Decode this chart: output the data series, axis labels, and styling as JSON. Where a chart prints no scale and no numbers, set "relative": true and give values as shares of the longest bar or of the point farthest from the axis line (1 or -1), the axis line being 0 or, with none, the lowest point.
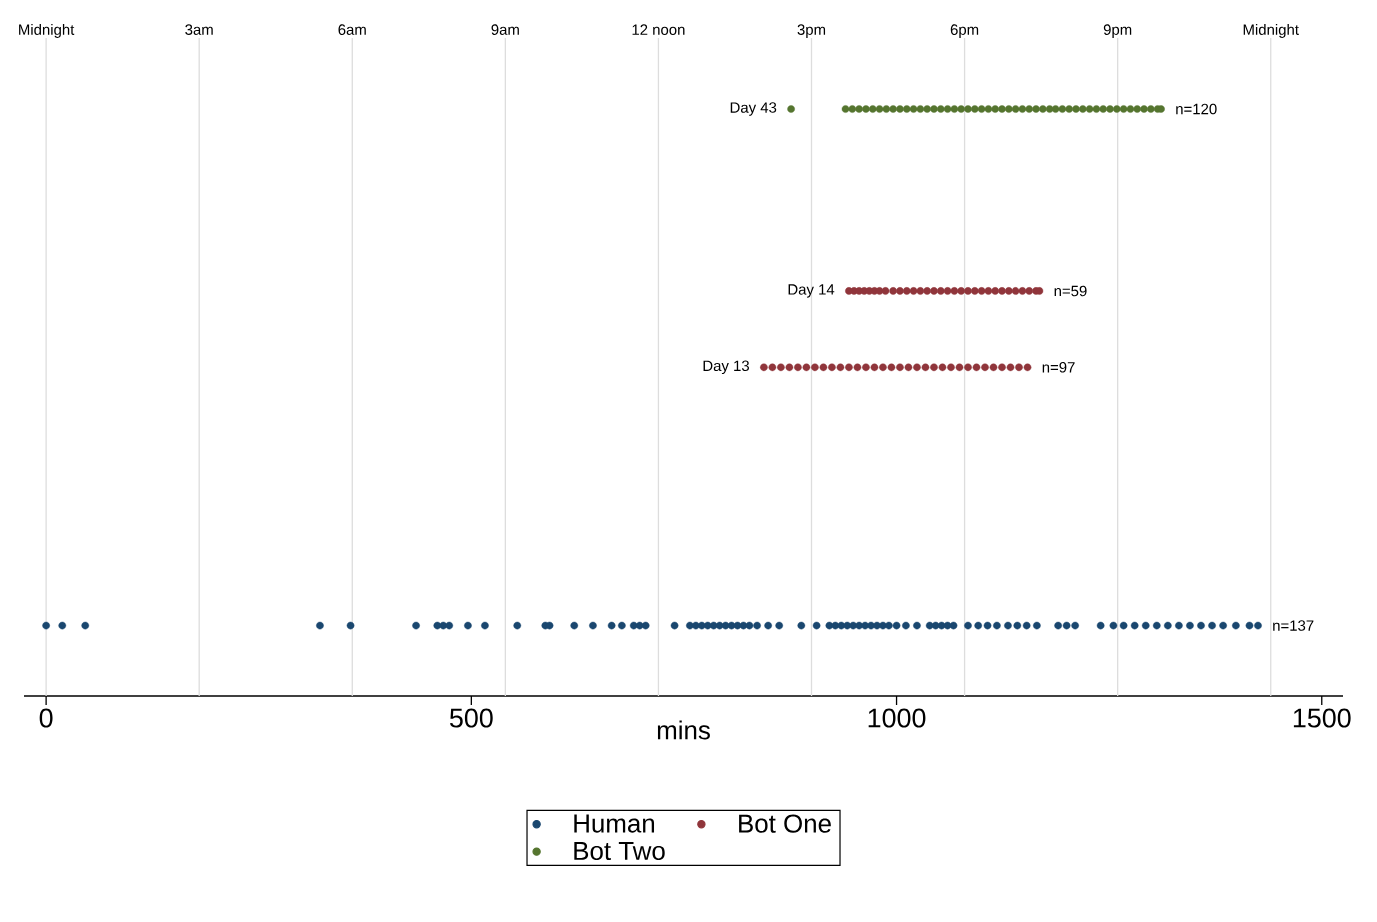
{
  "chart_data": {
    "type": "scatter",
    "relative": true,
    "xlabel": "mins",
    "xlim": [
      -26,
      1525
    ],
    "xticks": [
      0,
      500,
      1000,
      1500
    ],
    "ref_lines": [
      {
        "axis": "x",
        "value": 0,
        "label": "Midnight",
        "color": "#dddddd"
      },
      {
        "axis": "x",
        "value": 180,
        "label": "3am",
        "color": "#dddddd"
      },
      {
        "axis": "x",
        "value": 360,
        "label": "6am",
        "color": "#dddddd"
      },
      {
        "axis": "x",
        "value": 540,
        "label": "9am",
        "color": "#dddddd"
      },
      {
        "axis": "x",
        "value": 720,
        "label": "12 noon",
        "color": "#dddddd"
      },
      {
        "axis": "x",
        "value": 900,
        "label": "3pm",
        "color": "#dddddd"
      },
      {
        "axis": "x",
        "value": 1080,
        "label": "6pm",
        "color": "#dddddd"
      },
      {
        "axis": "x",
        "value": 1260,
        "label": "9pm",
        "color": "#dddddd"
      },
      {
        "axis": "x",
        "value": 1440,
        "label": "Midnight",
        "color": "#dddddd"
      }
    ],
    "legend": "bottom",
    "series": [
      {
        "name": "Human",
        "color": "#1a476f",
        "x": [
          0,
          19,
          46,
          322,
          358,
          435,
          460,
          467,
          474,
          496,
          516,
          554,
          587,
          592,
          621,
          643,
          665,
          677,
          691,
          698,
          705,
          739,
          757,
          764,
          771,
          778,
          785,
          792,
          799,
          806,
          813,
          820,
          827,
          836,
          849,
          862,
          888,
          906,
          921,
          928,
          935,
          942,
          949,
          956,
          963,
          970,
          977,
          984,
          991,
          1000,
          1011,
          1024,
          1039,
          1046,
          1053,
          1060,
          1067,
          1084,
          1096,
          1107,
          1118,
          1131,
          1142,
          1153,
          1165,
          1190,
          1200,
          1210,
          1240,
          1255,
          1267,
          1280,
          1293,
          1306,
          1319,
          1332,
          1345,
          1358,
          1371,
          1384,
          1399,
          1415,
          1425
        ],
        "values": [
          0.12,
          0.12,
          0.12,
          0.12,
          0.12,
          0.12,
          0.12,
          0.12,
          0.12,
          0.12,
          0.12,
          0.12,
          0.12,
          0.12,
          0.12,
          0.12,
          0.12,
          0.12,
          0.12,
          0.12,
          0.12,
          0.12,
          0.12,
          0.12,
          0.12,
          0.12,
          0.12,
          0.12,
          0.12,
          0.12,
          0.12,
          0.12,
          0.12,
          0.12,
          0.12,
          0.12,
          0.12,
          0.12,
          0.12,
          0.12,
          0.12,
          0.12,
          0.12,
          0.12,
          0.12,
          0.12,
          0.12,
          0.12,
          0.12,
          0.12,
          0.12,
          0.12,
          0.12,
          0.12,
          0.12,
          0.12,
          0.12,
          0.12,
          0.12,
          0.12,
          0.12,
          0.12,
          0.12,
          0.12,
          0.12,
          0.12,
          0.12,
          0.12,
          0.12,
          0.12,
          0.12,
          0.12,
          0.12,
          0.12,
          0.12,
          0.12,
          0.12,
          0.12,
          0.12,
          0.12,
          0.12,
          0.12,
          0.12
        ]
      },
      {
        "name": "Bot One",
        "color": "#90353b",
        "x": [
          944,
          950,
          956,
          962,
          968,
          974,
          980,
          987,
          996,
          1004,
          1012,
          1020,
          1028,
          1036,
          1044,
          1052,
          1060,
          1068,
          1076,
          1084,
          1092,
          1100,
          1108,
          1116,
          1124,
          1132,
          1140,
          1148,
          1156,
          1164,
          1168,
          844,
          854,
          864,
          874,
          884,
          894,
          904,
          914,
          924,
          934,
          944,
          954,
          964,
          974,
          984,
          994,
          1004,
          1014,
          1024,
          1034,
          1044,
          1054,
          1064,
          1074,
          1084,
          1094,
          1104,
          1114,
          1124,
          1134,
          1144,
          1154
        ],
        "values": [
          0.69,
          0.69,
          0.69,
          0.69,
          0.69,
          0.69,
          0.69,
          0.69,
          0.69,
          0.69,
          0.69,
          0.69,
          0.69,
          0.69,
          0.69,
          0.69,
          0.69,
          0.69,
          0.69,
          0.69,
          0.69,
          0.69,
          0.69,
          0.69,
          0.69,
          0.69,
          0.69,
          0.69,
          0.69,
          0.69,
          0.69,
          0.56,
          0.56,
          0.56,
          0.56,
          0.56,
          0.56,
          0.56,
          0.56,
          0.56,
          0.56,
          0.56,
          0.56,
          0.56,
          0.56,
          0.56,
          0.56,
          0.56,
          0.56,
          0.56,
          0.56,
          0.56,
          0.56,
          0.56,
          0.56,
          0.56,
          0.56,
          0.56,
          0.56,
          0.56,
          0.56,
          0.56,
          0.56
        ]
      },
      {
        "name": "Bot Two",
        "color": "#55752f",
        "x": [
          876,
          940,
          948,
          956,
          964,
          972,
          980,
          988,
          996,
          1004,
          1012,
          1020,
          1028,
          1036,
          1044,
          1052,
          1060,
          1068,
          1076,
          1084,
          1092,
          1100,
          1108,
          1116,
          1124,
          1132,
          1140,
          1148,
          1156,
          1164,
          1172,
          1180,
          1187,
          1195,
          1203,
          1211,
          1219,
          1227,
          1235,
          1243,
          1251,
          1259,
          1267,
          1275,
          1283,
          1291,
          1299,
          1307,
          1311
        ],
        "values": [
          1,
          1,
          1,
          1,
          1,
          1,
          1,
          1,
          1,
          1,
          1,
          1,
          1,
          1,
          1,
          1,
          1,
          1,
          1,
          1,
          1,
          1,
          1,
          1,
          1,
          1,
          1,
          1,
          1,
          1,
          1,
          1,
          1,
          1,
          1,
          1,
          1,
          1,
          1,
          1,
          1,
          1,
          1,
          1,
          1,
          1,
          1,
          1,
          1
        ]
      }
    ],
    "annotations": [
      {
        "text": "Day 43",
        "x": 876,
        "y": 1
      },
      {
        "text": "n=120",
        "x": 1311,
        "y": 1
      },
      {
        "text": "Day 14",
        "x": 944,
        "y": 0.69
      },
      {
        "text": "n=59",
        "x": 1168,
        "y": 0.69
      },
      {
        "text": "Day 13",
        "x": 844,
        "y": 0.56
      },
      {
        "text": "n=97",
        "x": 1154,
        "y": 0.56
      },
      {
        "text": "n=137",
        "x": 1425,
        "y": 0.12
      }
    ]
  }
}
